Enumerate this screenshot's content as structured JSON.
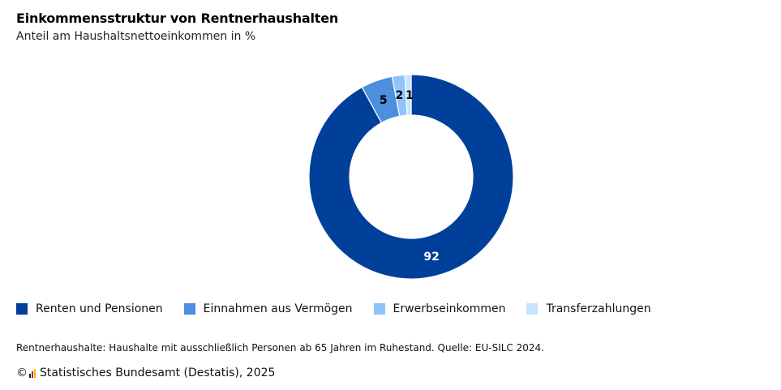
{
  "header": {
    "title": "Einkommensstruktur von Rentnerhaushalten",
    "subtitle": "Anteil am Haushaltsnettoeinkommen in %"
  },
  "chart_data": {
    "type": "pie",
    "variant": "donut",
    "title": "Einkommensstruktur von Rentnerhaushalten",
    "subtitle": "Anteil am Haushaltsnettoeinkommen in %",
    "categories": [
      "Renten und Pensionen",
      "Einnahmen aus Vermögen",
      "Erwerbseinkommen",
      "Transferzahlungen"
    ],
    "values": [
      92,
      5,
      2,
      1
    ],
    "data_labels": [
      "92",
      "5",
      "2",
      "1"
    ],
    "colors": [
      "#003f9a",
      "#4b8fdd",
      "#8fc3fa",
      "#c7e3fd"
    ],
    "label_colors": [
      "#ffffff",
      "#000000",
      "#000000",
      "#000000"
    ],
    "legend_position": "bottom-left"
  },
  "legend": {
    "items": [
      {
        "label": "Renten und Pensionen",
        "color": "#003f9a"
      },
      {
        "label": "Einnahmen aus Vermögen",
        "color": "#4b8fdd"
      },
      {
        "label": "Erwerbseinkommen",
        "color": "#8fc3fa"
      },
      {
        "label": "Transferzahlungen",
        "color": "#c7e3fd"
      }
    ]
  },
  "footer": {
    "note": "Rentnerhaushalte: Haushalte mit ausschließlich Personen ab 65 Jahren im Ruhestand. Quelle: EU-SILC 2024.",
    "copyright_symbol": "©",
    "copyright": "Statistisches Bundesamt (Destatis), 2025",
    "logo_colors": [
      "#1a1a1a",
      "#d40000",
      "#f2b800"
    ]
  }
}
